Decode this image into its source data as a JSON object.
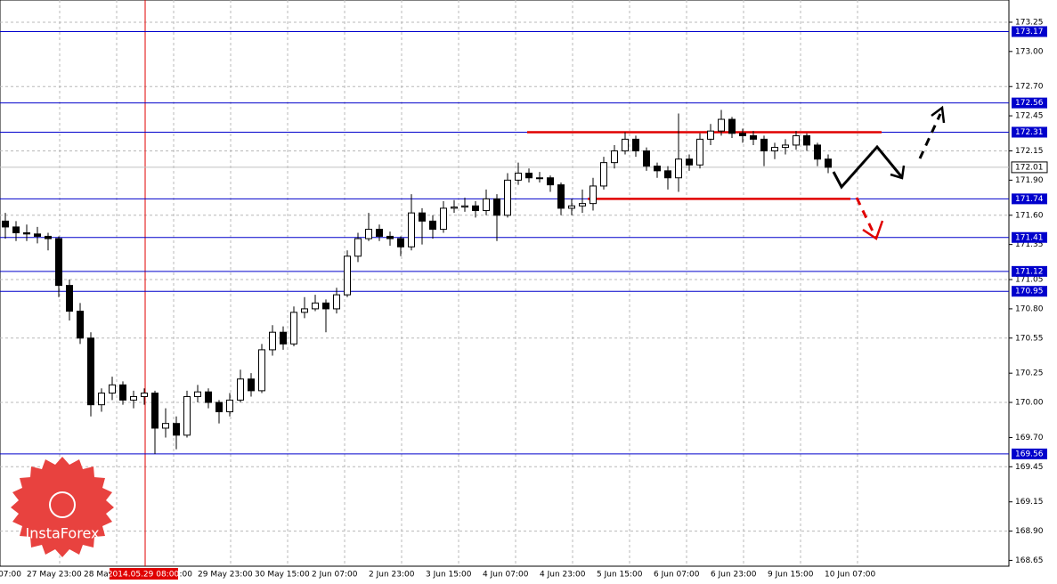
{
  "chart_data": {
    "type": "candlestick",
    "ohlc": [
      [
        171.55,
        171.62,
        171.4,
        171.5
      ],
      [
        171.5,
        171.55,
        171.38,
        171.45
      ],
      [
        171.45,
        171.52,
        171.38,
        171.44
      ],
      [
        171.44,
        171.5,
        171.36,
        171.42
      ],
      [
        171.42,
        171.45,
        171.3,
        171.4
      ],
      [
        171.4,
        171.42,
        170.9,
        171.0
      ],
      [
        171.0,
        171.05,
        170.7,
        170.78
      ],
      [
        170.78,
        170.85,
        170.5,
        170.55
      ],
      [
        170.55,
        170.6,
        169.88,
        169.98
      ],
      [
        169.98,
        170.12,
        169.92,
        170.08
      ],
      [
        170.08,
        170.22,
        170.02,
        170.15
      ],
      [
        170.15,
        170.18,
        169.98,
        170.02
      ],
      [
        170.02,
        170.1,
        169.95,
        170.05
      ],
      [
        170.05,
        170.12,
        169.98,
        170.08
      ],
      [
        170.08,
        170.1,
        169.56,
        169.78
      ],
      [
        169.78,
        169.95,
        169.7,
        169.82
      ],
      [
        169.82,
        169.88,
        169.6,
        169.72
      ],
      [
        169.72,
        170.1,
        169.7,
        170.05
      ],
      [
        170.05,
        170.15,
        170.0,
        170.09
      ],
      [
        170.09,
        170.12,
        169.95,
        170.0
      ],
      [
        170.0,
        170.02,
        169.82,
        169.92
      ],
      [
        169.92,
        170.08,
        169.88,
        170.02
      ],
      [
        170.02,
        170.28,
        170.0,
        170.2
      ],
      [
        170.2,
        170.25,
        170.05,
        170.1
      ],
      [
        170.1,
        170.5,
        170.08,
        170.45
      ],
      [
        170.45,
        170.66,
        170.4,
        170.6
      ],
      [
        170.6,
        170.65,
        170.45,
        170.5
      ],
      [
        170.5,
        170.82,
        170.48,
        170.77
      ],
      [
        170.77,
        170.9,
        170.72,
        170.8
      ],
      [
        170.8,
        170.92,
        170.78,
        170.85
      ],
      [
        170.85,
        170.88,
        170.6,
        170.8
      ],
      [
        170.8,
        170.98,
        170.76,
        170.92
      ],
      [
        170.92,
        171.3,
        170.9,
        171.25
      ],
      [
        171.25,
        171.45,
        171.2,
        171.4
      ],
      [
        171.4,
        171.62,
        171.38,
        171.48
      ],
      [
        171.48,
        171.52,
        171.38,
        171.42
      ],
      [
        171.42,
        171.46,
        171.34,
        171.4
      ],
      [
        171.4,
        171.42,
        171.25,
        171.33
      ],
      [
        171.33,
        171.78,
        171.3,
        171.62
      ],
      [
        171.62,
        171.66,
        171.35,
        171.55
      ],
      [
        171.55,
        171.6,
        171.4,
        171.48
      ],
      [
        171.48,
        171.72,
        171.45,
        171.66
      ],
      [
        171.66,
        171.73,
        171.62,
        171.67
      ],
      [
        171.67,
        171.75,
        171.63,
        171.68
      ],
      [
        171.68,
        171.72,
        171.58,
        171.64
      ],
      [
        171.64,
        171.82,
        171.6,
        171.74
      ],
      [
        171.74,
        171.78,
        171.38,
        171.6
      ],
      [
        171.6,
        171.96,
        171.58,
        171.9
      ],
      [
        171.9,
        172.05,
        171.86,
        171.96
      ],
      [
        171.96,
        172.0,
        171.88,
        171.92
      ],
      [
        171.92,
        171.97,
        171.88,
        171.92
      ],
      [
        171.92,
        171.94,
        171.8,
        171.86
      ],
      [
        171.86,
        171.88,
        171.6,
        171.66
      ],
      [
        171.66,
        171.74,
        171.6,
        171.68
      ],
      [
        171.68,
        171.82,
        171.62,
        171.7
      ],
      [
        171.7,
        171.92,
        171.64,
        171.85
      ],
      [
        171.85,
        172.1,
        171.82,
        172.05
      ],
      [
        172.05,
        172.2,
        172.0,
        172.15
      ],
      [
        172.15,
        172.31,
        172.12,
        172.25
      ],
      [
        172.25,
        172.28,
        172.1,
        172.15
      ],
      [
        172.15,
        172.18,
        171.98,
        172.02
      ],
      [
        172.02,
        172.05,
        171.92,
        171.98
      ],
      [
        171.98,
        172.02,
        171.82,
        171.92
      ],
      [
        171.92,
        172.47,
        171.8,
        172.08
      ],
      [
        172.08,
        172.12,
        171.98,
        172.03
      ],
      [
        172.03,
        172.3,
        172.0,
        172.25
      ],
      [
        172.25,
        172.38,
        172.2,
        172.32
      ],
      [
        172.32,
        172.5,
        172.28,
        172.42
      ],
      [
        172.42,
        172.44,
        172.26,
        172.3
      ],
      [
        172.3,
        172.34,
        172.22,
        172.28
      ],
      [
        172.28,
        172.32,
        172.2,
        172.25
      ],
      [
        172.25,
        172.28,
        172.02,
        172.15
      ],
      [
        172.15,
        172.22,
        172.08,
        172.18
      ],
      [
        172.18,
        172.25,
        172.12,
        172.2
      ],
      [
        172.2,
        172.32,
        172.16,
        172.28
      ],
      [
        172.28,
        172.3,
        172.15,
        172.2
      ],
      [
        172.2,
        172.22,
        172.02,
        172.08
      ],
      [
        172.08,
        172.12,
        171.96,
        172.01
      ]
    ],
    "ylim": [
      168.6,
      173.44
    ],
    "yticks": [
      173.25,
      {
        "value": 173,
        "label": "173.00"
      },
      {
        "value": 172.7,
        "label": "172.70"
      },
      172.45,
      172.15,
      {
        "value": 171.9,
        "label": "171.90"
      },
      {
        "value": 171.6,
        "label": "171.60"
      },
      171.35,
      171.05,
      {
        "value": 170.8,
        "label": "170.80"
      },
      170.55,
      170.25,
      {
        "value": 170,
        "label": "170.00"
      },
      {
        "value": 169.7,
        "label": "169.70"
      },
      169.45,
      169.15,
      {
        "value": 168.9,
        "label": "168.90"
      },
      168.65
    ],
    "levels": [
      173.17,
      172.56,
      172.31,
      171.74,
      171.41,
      171.12,
      170.95,
      169.56
    ],
    "level_color": "#0000cc",
    "red_lines": [
      172.31,
      171.74
    ],
    "current_price": 172.01,
    "x_labels": [
      "07:00",
      "27 May 23:00",
      "28 May",
      ":00",
      "29 May 23:00",
      "30 May 15:00",
      "2 Jun 07:00",
      "2 Jun 23:00",
      "3 Jun 15:00",
      "4 Jun 07:00",
      "4 Jun 23:00",
      "5 Jun 15:00",
      "6 Jun 07:00",
      "6 Jun 23:00",
      "9 Jun 15:00",
      "10 Jun 07:00"
    ],
    "crosshair_label": "2014.05.29 08:00",
    "watermark": "InstaForex",
    "grid": true
  }
}
